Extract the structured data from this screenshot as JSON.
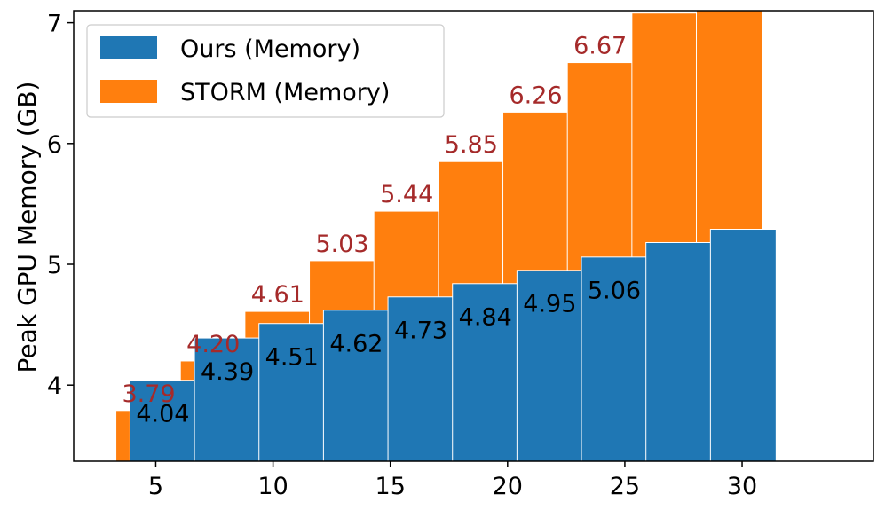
{
  "chart_data": {
    "type": "bar",
    "ylabel": "Peak GPU Memory (GB)",
    "xlabel": "",
    "title": "",
    "x": [
      5,
      10,
      15,
      20,
      25,
      30
    ],
    "ylim": [
      3.37,
      7.1
    ],
    "yticks": [
      4,
      5,
      6,
      7
    ],
    "legend_position": "top-left",
    "grid": false,
    "series": [
      {
        "name": "Ours (Memory)",
        "color": "#1f77b4",
        "x": [
          5.3,
          8.05,
          10.8,
          13.55,
          16.3,
          19.05,
          21.8,
          24.55,
          27.3,
          30.05
        ],
        "values": [
          4.04,
          4.39,
          4.51,
          4.62,
          4.73,
          4.84,
          4.95,
          5.06,
          5.18,
          5.29
        ],
        "labels": [
          "4.04",
          "4.39",
          "4.51",
          "4.62",
          "4.73",
          "4.84",
          "4.95",
          "5.06"
        ]
      },
      {
        "name": "STORM (Memory)",
        "color": "#ff7f0e",
        "label_color": "#a52a2a",
        "x": [
          4.7,
          7.45,
          10.2,
          12.95,
          15.7,
          18.45,
          21.2,
          23.95,
          26.7,
          29.45
        ],
        "values": [
          3.79,
          4.2,
          4.61,
          5.03,
          5.44,
          5.85,
          6.26,
          6.67,
          7.08,
          7.49
        ],
        "labels": [
          "3.79",
          "4.20",
          "4.61",
          "5.03",
          "5.44",
          "5.85",
          "6.26",
          "6.67"
        ]
      }
    ]
  }
}
